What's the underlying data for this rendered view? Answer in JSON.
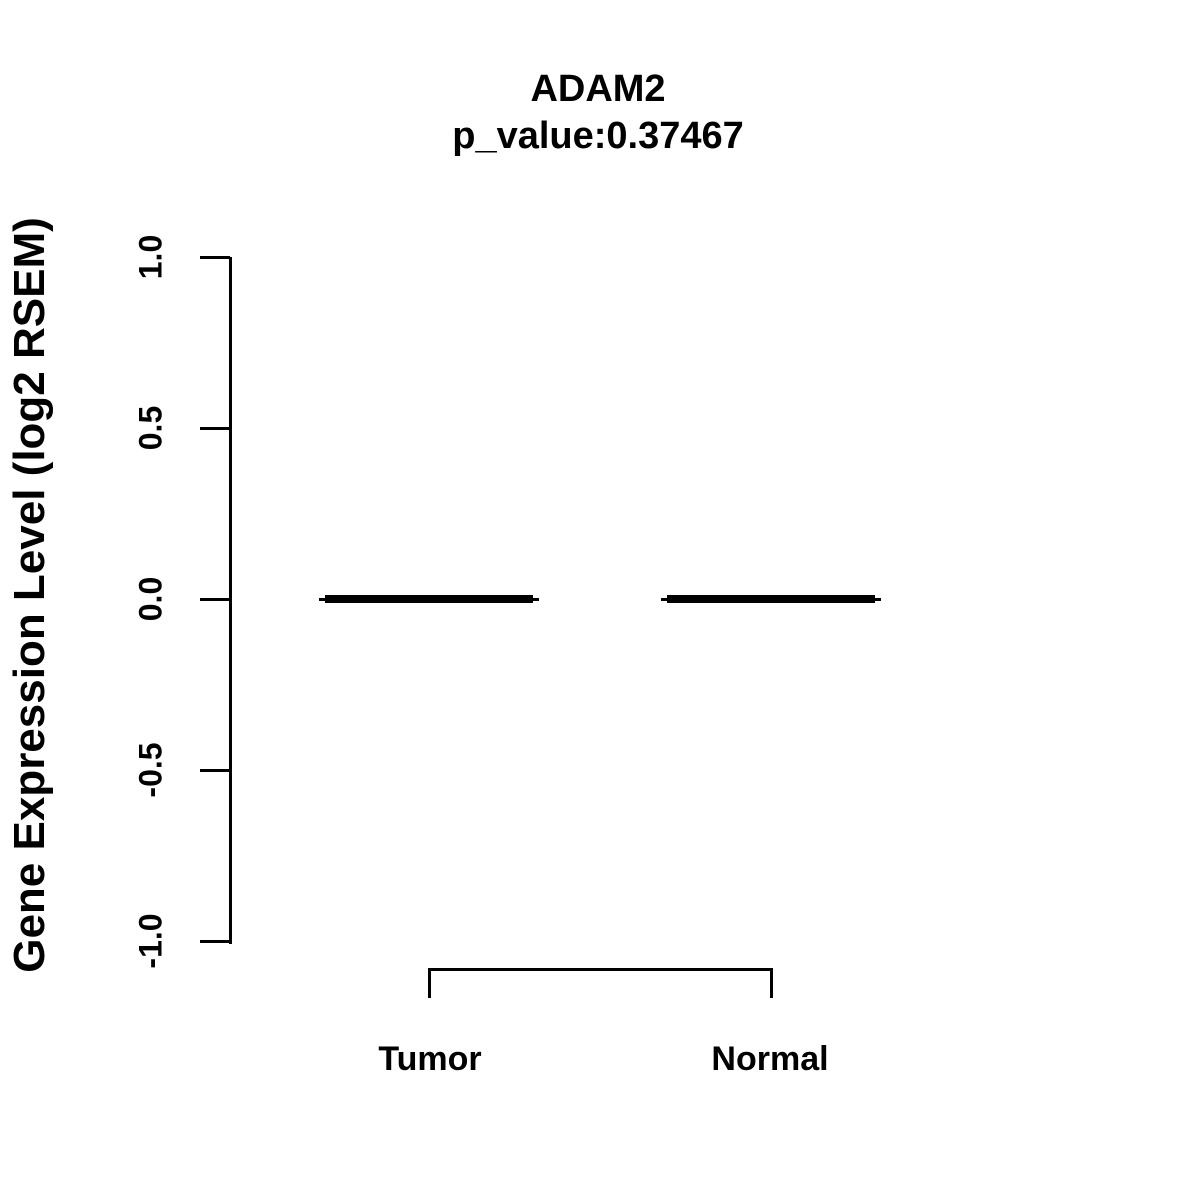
{
  "chart_data": {
    "type": "boxplot",
    "title": "ADAM2",
    "subtitle": "p_value:0.37467",
    "gene": "ADAM2",
    "p_value": 0.37467,
    "categories": [
      "Tumor",
      "Normal"
    ],
    "series": [
      {
        "name": "Tumor",
        "median": 0.0,
        "q1": 0.0,
        "q3": 0.0,
        "whisker_low": 0.0,
        "whisker_high": 0.0
      },
      {
        "name": "Normal",
        "median": 0.0,
        "q1": 0.0,
        "q3": 0.0,
        "whisker_low": 0.0,
        "whisker_high": 0.0
      }
    ],
    "xlabel": "",
    "ylabel": "Gene Expression Level (log2 RSEM)",
    "ylim": [
      -1.0,
      1.0
    ],
    "yticks": [
      1.0,
      0.5,
      0.0,
      -0.5,
      -1.0
    ],
    "ytick_labels": [
      "1.0",
      "0.5",
      "0.0",
      "-0.5",
      "-1.0"
    ],
    "grid": false,
    "legend": false,
    "annotations": [
      "comparison bracket between Tumor and Normal"
    ],
    "colors": {
      "foreground": "#000000",
      "background": "#FFFFFF"
    }
  }
}
